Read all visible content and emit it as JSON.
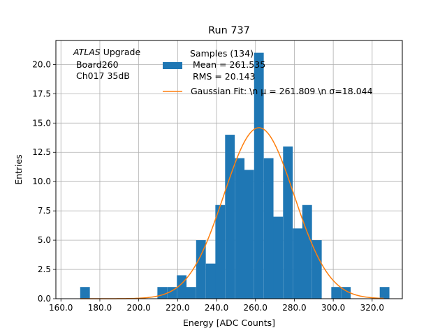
{
  "chart_data": {
    "type": "bar",
    "title": "Run 737",
    "xlabel": "Energy [ADC Counts]",
    "ylabel": "Entries",
    "xlim": [
      157.4,
      335.5
    ],
    "ylim": [
      0,
      22.05
    ],
    "grid": true,
    "x_ticks": [
      160,
      180,
      200,
      220,
      240,
      260,
      280,
      300,
      320
    ],
    "x_tick_labels": [
      "160.0",
      "180.0",
      "200.0",
      "220.0",
      "240.0",
      "260.0",
      "280.0",
      "300.0",
      "320.0"
    ],
    "y_ticks": [
      0,
      2.5,
      5,
      7.5,
      10,
      12.5,
      15,
      17.5,
      20
    ],
    "y_tick_labels": [
      "0.0",
      "2.5",
      "5.0",
      "7.5",
      "10.0",
      "12.5",
      "15.0",
      "17.5",
      "20.0"
    ],
    "histogram": {
      "bin_width": 4.97,
      "bin_edges_start": [
        169.9,
        209.6,
        214.6,
        219.6,
        224.5,
        229.5,
        234.5,
        239.4,
        244.4,
        249.4,
        254.3,
        259.3,
        264.3,
        269.2,
        274.2,
        279.2,
        284.1,
        289.1,
        299.0,
        304.0,
        323.9
      ],
      "counts": [
        1,
        1,
        1,
        2,
        1,
        5,
        3,
        8,
        14,
        12,
        11,
        21,
        12,
        7,
        13,
        6,
        8,
        5,
        1,
        1,
        1
      ],
      "color": "#1f77b4"
    },
    "gaussian_fit": {
      "mu": 261.809,
      "sigma": 18.044,
      "amplitude": 14.6,
      "x_range": [
        169.9,
        326.0
      ],
      "color": "#ff7f0e"
    },
    "legend": {
      "placement": "top-right",
      "samples_lines": [
        "Samples (134)",
        " Mean = 261.535",
        " RMS = 20.143"
      ],
      "fit_label": "Gaussian Fit: \\n μ = 261.809 \\n σ=18.044"
    },
    "annotation": {
      "placement": "top-left",
      "atlas_word": "ATLAS",
      "upgrade_word": " Upgrade",
      "lines": [
        " Board260",
        " Ch017 35dB"
      ]
    }
  }
}
